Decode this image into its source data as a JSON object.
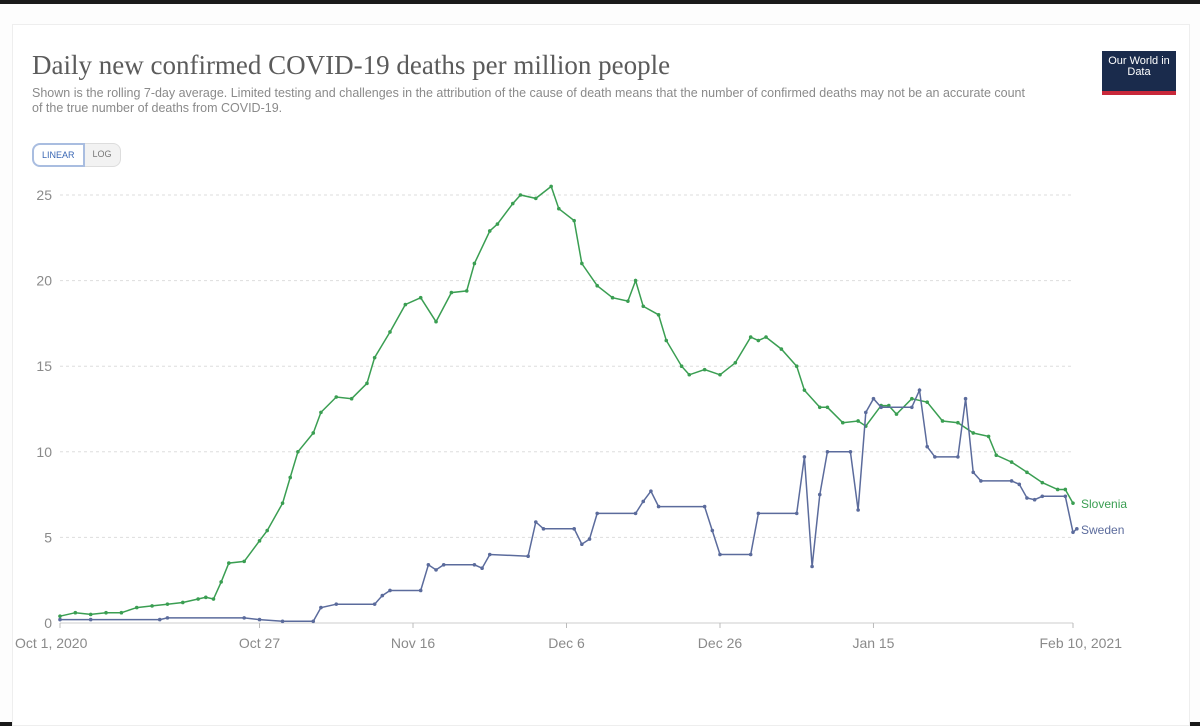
{
  "header": {
    "title": "Daily new confirmed COVID-19 deaths per million people",
    "subtitle": "Shown is the rolling 7-day average. Limited testing and challenges in the attribution of the cause of death means that the number of confirmed deaths may not be an accurate count of the true number of deaths from COVID-19.",
    "logo_text": "Our World in Data",
    "scale_options": [
      "LINEAR",
      "LOG"
    ],
    "selected_scale": "LINEAR"
  },
  "chart_data": {
    "type": "line",
    "title": "Daily new confirmed COVID-19 deaths per million people",
    "xlabel": "",
    "ylabel": "",
    "x_unit": "days since Oct 1, 2020",
    "xlim": [
      0,
      132
    ],
    "ylim": [
      0,
      25
    ],
    "yticks": [
      0,
      5,
      10,
      15,
      20,
      25
    ],
    "xticks": [
      {
        "day": 0,
        "label": "Oct 1, 2020"
      },
      {
        "day": 26,
        "label": "Oct 27"
      },
      {
        "day": 46,
        "label": "Nov 16"
      },
      {
        "day": 66,
        "label": "Dec 6"
      },
      {
        "day": 86,
        "label": "Dec 26"
      },
      {
        "day": 106,
        "label": "Jan 15"
      },
      {
        "day": 132,
        "label": "Feb 10, 2021"
      }
    ],
    "grid": true,
    "legend": "line-end labels right",
    "series": [
      {
        "name": "Slovenia",
        "color": "#3a9e52",
        "points": [
          [
            0,
            0.4
          ],
          [
            2,
            0.6
          ],
          [
            4,
            0.5
          ],
          [
            6,
            0.6
          ],
          [
            8,
            0.6
          ],
          [
            10,
            0.9
          ],
          [
            12,
            1.0
          ],
          [
            14,
            1.1
          ],
          [
            16,
            1.2
          ],
          [
            18,
            1.4
          ],
          [
            19,
            1.5
          ],
          [
            20,
            1.4
          ],
          [
            21,
            2.4
          ],
          [
            22,
            3.5
          ],
          [
            24,
            3.6
          ],
          [
            26,
            4.8
          ],
          [
            27,
            5.4
          ],
          [
            29,
            7.0
          ],
          [
            30,
            8.5
          ],
          [
            31,
            10.0
          ],
          [
            33,
            11.1
          ],
          [
            34,
            12.3
          ],
          [
            36,
            13.2
          ],
          [
            38,
            13.1
          ],
          [
            40,
            14.0
          ],
          [
            41,
            15.5
          ],
          [
            43,
            17.0
          ],
          [
            45,
            18.6
          ],
          [
            47,
            19.0
          ],
          [
            49,
            17.6
          ],
          [
            51,
            19.3
          ],
          [
            53,
            19.4
          ],
          [
            54,
            21.0
          ],
          [
            56,
            22.9
          ],
          [
            57,
            23.3
          ],
          [
            59,
            24.5
          ],
          [
            60,
            25.0
          ],
          [
            62,
            24.8
          ],
          [
            64,
            25.5
          ],
          [
            65,
            24.2
          ],
          [
            67,
            23.5
          ],
          [
            68,
            21.0
          ],
          [
            70,
            19.7
          ],
          [
            72,
            19.0
          ],
          [
            74,
            18.8
          ],
          [
            75,
            20.0
          ],
          [
            76,
            18.5
          ],
          [
            78,
            18.0
          ],
          [
            79,
            16.5
          ],
          [
            81,
            15.0
          ],
          [
            82,
            14.5
          ],
          [
            84,
            14.8
          ],
          [
            86,
            14.5
          ],
          [
            88,
            15.2
          ],
          [
            90,
            16.7
          ],
          [
            91,
            16.5
          ],
          [
            92,
            16.7
          ],
          [
            94,
            16.0
          ],
          [
            96,
            15.0
          ],
          [
            97,
            13.6
          ],
          [
            99,
            12.6
          ],
          [
            100,
            12.6
          ],
          [
            102,
            11.7
          ],
          [
            104,
            11.8
          ],
          [
            105,
            11.5
          ],
          [
            107,
            12.7
          ],
          [
            108,
            12.7
          ],
          [
            109,
            12.2
          ],
          [
            111,
            13.1
          ],
          [
            113,
            12.9
          ],
          [
            115,
            11.8
          ],
          [
            117,
            11.7
          ],
          [
            119,
            11.1
          ],
          [
            121,
            10.9
          ],
          [
            122,
            9.8
          ],
          [
            124,
            9.4
          ],
          [
            126,
            8.8
          ],
          [
            128,
            8.2
          ],
          [
            130,
            7.8
          ],
          [
            131,
            7.8
          ],
          [
            132,
            7.0
          ]
        ]
      },
      {
        "name": "Sweden",
        "color": "#5b6b9c",
        "points": [
          [
            0,
            0.2
          ],
          [
            4,
            0.2
          ],
          [
            13,
            0.2
          ],
          [
            14,
            0.3
          ],
          [
            24,
            0.3
          ],
          [
            26,
            0.2
          ],
          [
            29,
            0.1
          ],
          [
            33,
            0.1
          ],
          [
            34,
            0.9
          ],
          [
            36,
            1.1
          ],
          [
            41,
            1.1
          ],
          [
            42,
            1.6
          ],
          [
            43,
            1.9
          ],
          [
            47,
            1.9
          ],
          [
            48,
            3.4
          ],
          [
            49,
            3.1
          ],
          [
            50,
            3.4
          ],
          [
            54,
            3.4
          ],
          [
            55,
            3.2
          ],
          [
            56,
            4.0
          ],
          [
            61,
            3.9
          ],
          [
            62,
            5.9
          ],
          [
            63,
            5.5
          ],
          [
            67,
            5.5
          ],
          [
            68,
            4.6
          ],
          [
            69,
            4.9
          ],
          [
            70,
            6.4
          ],
          [
            75,
            6.4
          ],
          [
            76,
            7.1
          ],
          [
            77,
            7.7
          ],
          [
            78,
            6.8
          ],
          [
            84,
            6.8
          ],
          [
            85,
            5.4
          ],
          [
            86,
            4.0
          ],
          [
            90,
            4.0
          ],
          [
            91,
            6.4
          ],
          [
            96,
            6.4
          ],
          [
            97,
            9.7
          ],
          [
            98,
            3.3
          ],
          [
            99,
            7.5
          ],
          [
            100,
            10.0
          ],
          [
            103,
            10.0
          ],
          [
            104,
            6.6
          ],
          [
            105,
            12.3
          ],
          [
            106,
            13.1
          ],
          [
            107,
            12.6
          ],
          [
            111,
            12.6
          ],
          [
            112,
            13.6
          ],
          [
            113,
            10.3
          ],
          [
            114,
            9.7
          ],
          [
            117,
            9.7
          ],
          [
            118,
            13.1
          ],
          [
            119,
            8.8
          ],
          [
            120,
            8.3
          ],
          [
            124,
            8.3
          ],
          [
            125,
            8.1
          ],
          [
            126,
            7.3
          ],
          [
            127,
            7.2
          ],
          [
            128,
            7.4
          ],
          [
            131,
            7.4
          ],
          [
            132,
            5.3
          ],
          [
            132.5,
            5.5
          ]
        ]
      }
    ]
  }
}
